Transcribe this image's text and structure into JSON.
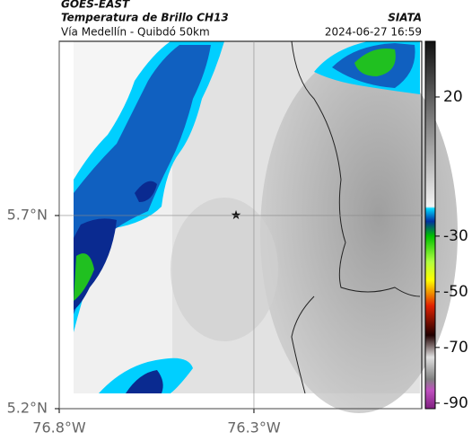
{
  "header": {
    "satellite": "GOES-EAST",
    "product": "Temperatura de Brillo CH13",
    "source": "SIATA",
    "region": "Vía Medellín - Quibdó 50km",
    "datetime": "2024-06-27 16:59"
  },
  "map": {
    "lonlim": [
      -76.8,
      -75.869
    ],
    "latlim": [
      5.2,
      6.151
    ],
    "lonticks": [
      {
        "value": -76.8,
        "label": "76.8°W"
      },
      {
        "value": -76.3,
        "label": "76.3°W"
      }
    ],
    "latticks": [
      {
        "value": 5.7,
        "label": "5.7°N"
      },
      {
        "value": 5.2,
        "label": "5.2°N"
      }
    ],
    "grid": true
  },
  "colorbar": {
    "lim": [
      40,
      -92
    ],
    "ticks": [
      20,
      -30,
      -50,
      -70,
      -90
    ]
  }
}
